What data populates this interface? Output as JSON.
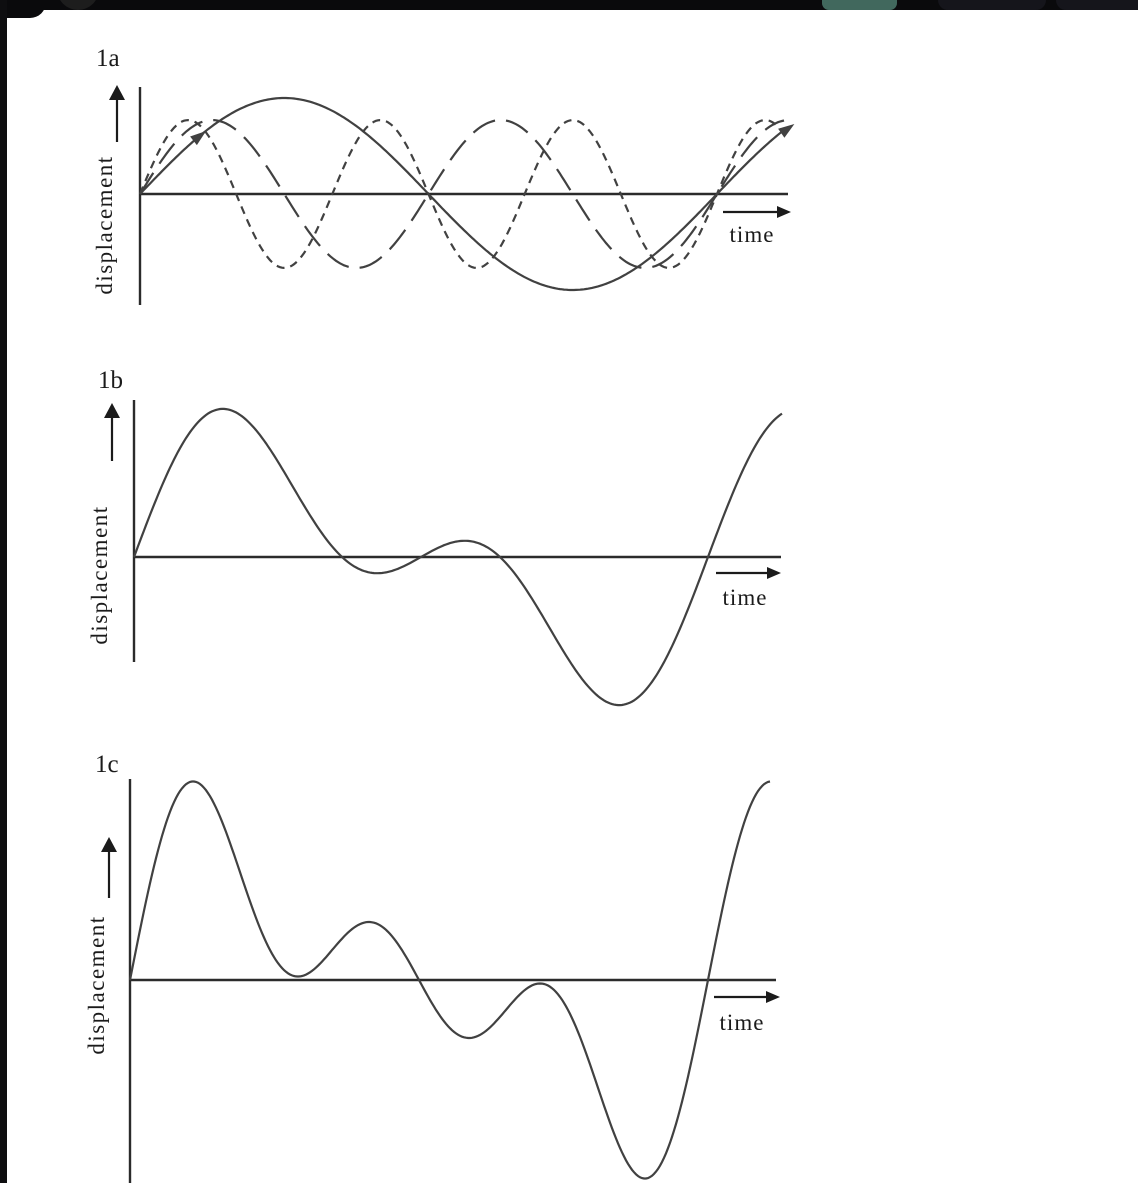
{
  "figure": {
    "background": "#ffffff",
    "curve_color": "#414141",
    "axis_color": "#2b2b2b",
    "text_color": "#1b1b1b"
  },
  "chrome": {
    "top_bar_color": "#0a0a0c",
    "left_edge_color": "#0e0e10",
    "tab_color": "#41685d",
    "ghost_tab_color": "#15151b",
    "corner_dot_color": "#1d1d1d"
  },
  "chart_data": [
    {
      "panel": "1a",
      "type": "line",
      "title": "1a",
      "xlabel": "time",
      "ylabel": "displacement",
      "x_axis_arrow": true,
      "y_axis_arrow": true,
      "grid": false,
      "description": "Three sinusoidal displacement-time waves drawn on one unlabeled axis pair. All start at zero displacement, rise together, and come back into phase at a common zero-crossing near the right end (one fundamental period). They also all cross zero together at the midpoint.",
      "x_span_in_fundamental_cycles": 1.12,
      "series": [
        {
          "name": "fundamental (1 cycle)",
          "line_style": "solid",
          "cycles": 1,
          "relative_amplitude": 1.0,
          "phase_deg": 0,
          "direction_arrows": true
        },
        {
          "name": "second harmonic (2 cycles)",
          "line_style": "long-dash",
          "cycles": 2,
          "relative_amplitude": 0.77,
          "phase_deg": 0
        },
        {
          "name": "third harmonic (3 cycles)",
          "line_style": "short-dash",
          "cycles": 3,
          "relative_amplitude": 0.77,
          "phase_deg": 0
        }
      ]
    },
    {
      "panel": "1b",
      "type": "line",
      "title": "1b",
      "xlabel": "time",
      "ylabel": "displacement",
      "x_axis_arrow": true,
      "y_axis_arrow": true,
      "grid": false,
      "description": "Superposition (sum) of the fundamental and second-harmonic waves from panel 1a: large first crest (relative height ~1.54), shallow dip, small bump near the axis, deep trough (~-1.54), then steep rise back up at the right.",
      "x_span_in_fundamental_cycles": 1.13,
      "series": [
        {
          "name": "sum of fundamental + second harmonic",
          "line_style": "solid",
          "components": [
            {
              "cycles": 1,
              "relative_amplitude": 1.0
            },
            {
              "cycles": 2,
              "relative_amplitude": 0.77
            }
          ]
        }
      ]
    },
    {
      "panel": "1c",
      "type": "line",
      "title": "1c",
      "xlabel": "time",
      "ylabel": "displacement",
      "x_axis_arrow": true,
      "y_axis_arrow": true,
      "grid": false,
      "description": "Superposition (sum) of all three waves from panel 1a: tall first crest (~2.07), dip to the axis, secondary crest, trough below the axis, small crest just under the axis, deep trough (~-2.07), then steep rise at the right.",
      "x_span_in_fundamental_cycles": 1.11,
      "series": [
        {
          "name": "sum of fundamental + second + third harmonics",
          "line_style": "solid",
          "components": [
            {
              "cycles": 1,
              "relative_amplitude": 1.0
            },
            {
              "cycles": 2,
              "relative_amplitude": 0.77
            },
            {
              "cycles": 3,
              "relative_amplitude": 0.77
            }
          ]
        }
      ]
    }
  ]
}
